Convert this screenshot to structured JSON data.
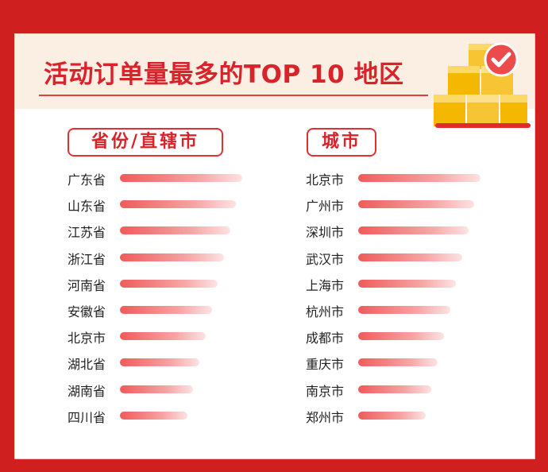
{
  "title": "活动订单量最多的TOP 10 地区",
  "chart_data": [
    {
      "type": "bar",
      "title": "省份/直辖市",
      "categories": [
        "广东省",
        "山东省",
        "江苏省",
        "浙江省",
        "河南省",
        "安徽省",
        "北京市",
        "湖北省",
        "湖南省",
        "四川省"
      ],
      "values": [
        10,
        9.5,
        9,
        8.5,
        8,
        7.5,
        7,
        6.5,
        6,
        5.5
      ],
      "orientation": "horizontal",
      "bar_color": "#ef5b5b"
    },
    {
      "type": "bar",
      "title": "城市",
      "categories": [
        "北京市",
        "广州市",
        "深圳市",
        "武汉市",
        "上海市",
        "杭州市",
        "成都市",
        "重庆市",
        "南京市",
        "郑州市"
      ],
      "values": [
        10,
        9.5,
        9,
        8.5,
        8,
        7.5,
        7,
        6.5,
        6,
        5.5
      ],
      "orientation": "horizontal",
      "bar_color": "#ef5b5b"
    }
  ],
  "colors": {
    "background": "#cf1f1f",
    "accent": "#d8232a",
    "header_band": "#fbeee2"
  },
  "icons": [
    "boxes-icon",
    "check-badge-icon"
  ]
}
